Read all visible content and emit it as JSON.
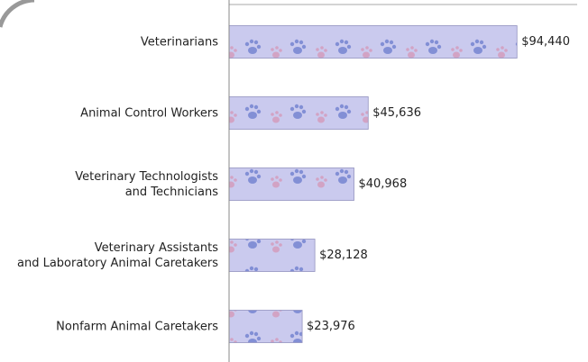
{
  "chart_data": {
    "type": "bar",
    "orientation": "horizontal",
    "categories": [
      "Veterinarians",
      "Animal Control Workers",
      "Veterinary Technologists\nand Technicians",
      "Veterinary Assistants\nand Laboratory Animal Caretakers",
      "Nonfarm Animal Caretakers"
    ],
    "values": [
      94440,
      45636,
      40968,
      28128,
      23976
    ],
    "value_labels": [
      "$94,440",
      "$45,636",
      "$40,968",
      "$28,128",
      "$23,976"
    ],
    "color": "#c9c9ef",
    "xlim": [
      0,
      100000
    ]
  }
}
